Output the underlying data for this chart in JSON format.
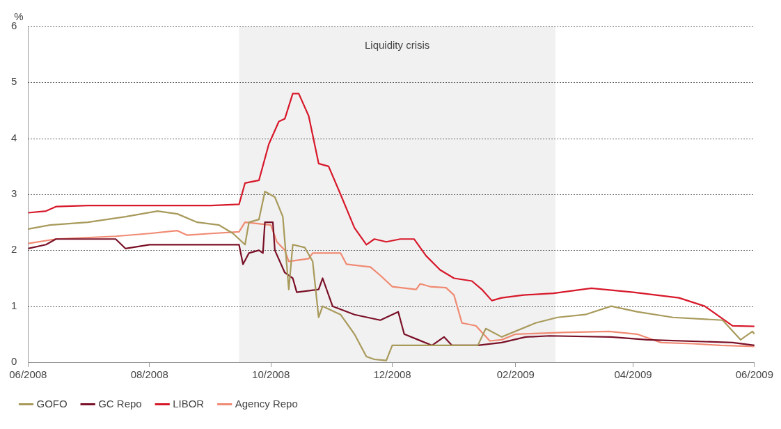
{
  "chart_data": {
    "type": "line",
    "ylabel": "%",
    "xlim": [
      "2008-06-01",
      "2009-06-01"
    ],
    "xticks": [
      {
        "value": "2008-06-01",
        "label": "06/2008"
      },
      {
        "value": "2008-08-01",
        "label": "08/2008"
      },
      {
        "value": "2008-10-01",
        "label": "10/2008"
      },
      {
        "value": "2008-12-01",
        "label": "12/2008"
      },
      {
        "value": "2009-02-01",
        "label": "02/2009"
      },
      {
        "value": "2009-04-01",
        "label": "04/2009"
      },
      {
        "value": "2009-06-01",
        "label": "06/2009"
      }
    ],
    "ylim": [
      0,
      6
    ],
    "yticks": [
      0,
      1,
      2,
      3,
      4,
      5,
      6
    ],
    "grid": "y",
    "legend": "bottom",
    "line_style": "solid",
    "marker": "none",
    "bands": [
      {
        "axis": "x",
        "from": "2008-09-15",
        "to": "2009-02-21",
        "label": "Liquidity crisis",
        "color": "#f1f1f1"
      }
    ],
    "series": [
      {
        "name": "GOFO",
        "color": "#a89a5b",
        "x": [
          "2008-06-01",
          "2008-06-12",
          "2008-07-01",
          "2008-07-20",
          "2008-08-05",
          "2008-08-15",
          "2008-08-25",
          "2008-09-05",
          "2008-09-12",
          "2008-09-18",
          "2008-09-20",
          "2008-09-25",
          "2008-09-28",
          "2008-10-03",
          "2008-10-07",
          "2008-10-10",
          "2008-10-12",
          "2008-10-18",
          "2008-10-22",
          "2008-10-25",
          "2008-10-27",
          "2008-11-05",
          "2008-11-12",
          "2008-11-18",
          "2008-11-22",
          "2008-11-28",
          "2008-12-01",
          "2008-12-15",
          "2008-12-30",
          "2009-01-13",
          "2009-01-17",
          "2009-01-25",
          "2009-02-11",
          "2009-02-22",
          "2009-03-08",
          "2009-03-21",
          "2009-04-03",
          "2009-04-21",
          "2009-05-16",
          "2009-05-25",
          "2009-05-31",
          "2009-06-01"
        ],
        "values": [
          2.38,
          2.45,
          2.5,
          2.6,
          2.7,
          2.65,
          2.5,
          2.45,
          2.3,
          2.1,
          2.5,
          2.55,
          3.05,
          2.95,
          2.6,
          1.3,
          2.1,
          2.05,
          1.8,
          0.8,
          1.0,
          0.85,
          0.5,
          0.1,
          0.05,
          0.03,
          0.3,
          0.3,
          0.3,
          0.3,
          0.6,
          0.45,
          0.7,
          0.8,
          0.85,
          1.0,
          0.9,
          0.8,
          0.75,
          0.4,
          0.55,
          0.5
        ]
      },
      {
        "name": "GC Repo",
        "color": "#7a1027",
        "x": [
          "2008-06-01",
          "2008-06-10",
          "2008-06-15",
          "2008-07-15",
          "2008-07-20",
          "2008-08-01",
          "2008-09-15",
          "2008-09-17",
          "2008-09-20",
          "2008-09-25",
          "2008-09-27",
          "2008-09-28",
          "2008-10-02",
          "2008-10-03",
          "2008-10-08",
          "2008-10-12",
          "2008-10-14",
          "2008-10-25",
          "2008-10-27",
          "2008-11-01",
          "2008-11-12",
          "2008-11-25",
          "2008-12-04",
          "2008-12-07",
          "2008-12-14",
          "2008-12-21",
          "2008-12-27",
          "2008-12-31",
          "2009-01-13",
          "2009-01-25",
          "2009-02-06",
          "2009-02-18",
          "2009-03-21",
          "2009-04-08",
          "2009-05-21",
          "2009-06-01"
        ],
        "values": [
          2.03,
          2.1,
          2.2,
          2.2,
          2.03,
          2.1,
          2.1,
          1.75,
          1.95,
          2.0,
          1.95,
          2.5,
          2.5,
          2.0,
          1.6,
          1.5,
          1.25,
          1.3,
          1.5,
          1.0,
          0.85,
          0.75,
          0.9,
          0.5,
          0.4,
          0.3,
          0.45,
          0.3,
          0.3,
          0.35,
          0.45,
          0.47,
          0.45,
          0.4,
          0.35,
          0.3
        ]
      },
      {
        "name": "LIBOR",
        "color": "#d7182a",
        "x": [
          "2008-06-01",
          "2008-06-10",
          "2008-06-15",
          "2008-07-01",
          "2008-08-01",
          "2008-09-01",
          "2008-09-15",
          "2008-09-18",
          "2008-09-25",
          "2008-09-30",
          "2008-10-05",
          "2008-10-08",
          "2008-10-12",
          "2008-10-15",
          "2008-10-20",
          "2008-10-25",
          "2008-10-30",
          "2008-11-05",
          "2008-11-12",
          "2008-11-18",
          "2008-11-22",
          "2008-11-28",
          "2008-12-05",
          "2008-12-12",
          "2008-12-18",
          "2008-12-25",
          "2009-01-01",
          "2009-01-10",
          "2009-01-15",
          "2009-01-20",
          "2009-01-25",
          "2009-02-05",
          "2009-02-20",
          "2009-03-11",
          "2009-04-01",
          "2009-04-24",
          "2009-05-07",
          "2009-05-21",
          "2009-06-01"
        ],
        "values": [
          2.67,
          2.7,
          2.78,
          2.8,
          2.8,
          2.8,
          2.82,
          3.2,
          3.25,
          3.9,
          4.3,
          4.35,
          4.8,
          4.8,
          4.4,
          3.55,
          3.5,
          3.0,
          2.4,
          2.1,
          2.2,
          2.15,
          2.2,
          2.2,
          1.9,
          1.65,
          1.5,
          1.45,
          1.3,
          1.1,
          1.15,
          1.2,
          1.23,
          1.32,
          1.25,
          1.15,
          1.0,
          0.65,
          0.64
        ]
      },
      {
        "name": "Agency Repo",
        "color": "#f08a72",
        "x": [
          "2008-06-01",
          "2008-06-15",
          "2008-07-15",
          "2008-08-01",
          "2008-08-15",
          "2008-08-20",
          "2008-09-01",
          "2008-09-15",
          "2008-09-18",
          "2008-10-01",
          "2008-10-04",
          "2008-10-08",
          "2008-10-10",
          "2008-10-20",
          "2008-10-22",
          "2008-11-05",
          "2008-11-08",
          "2008-11-20",
          "2008-11-25",
          "2008-12-01",
          "2008-12-13",
          "2008-12-15",
          "2008-12-20",
          "2008-12-28",
          "2009-01-01",
          "2009-01-05",
          "2009-01-12",
          "2009-01-19",
          "2009-01-25",
          "2009-02-01",
          "2009-02-25",
          "2009-03-20",
          "2009-04-03",
          "2009-04-15",
          "2009-05-01",
          "2009-05-15",
          "2009-06-01"
        ],
        "values": [
          2.12,
          2.2,
          2.25,
          2.3,
          2.35,
          2.27,
          2.3,
          2.33,
          2.5,
          2.45,
          2.15,
          2.0,
          1.8,
          1.85,
          1.95,
          1.95,
          1.75,
          1.7,
          1.55,
          1.35,
          1.3,
          1.4,
          1.35,
          1.33,
          1.2,
          0.7,
          0.65,
          0.38,
          0.4,
          0.5,
          0.53,
          0.55,
          0.5,
          0.35,
          0.33,
          0.3,
          0.28
        ]
      }
    ]
  }
}
